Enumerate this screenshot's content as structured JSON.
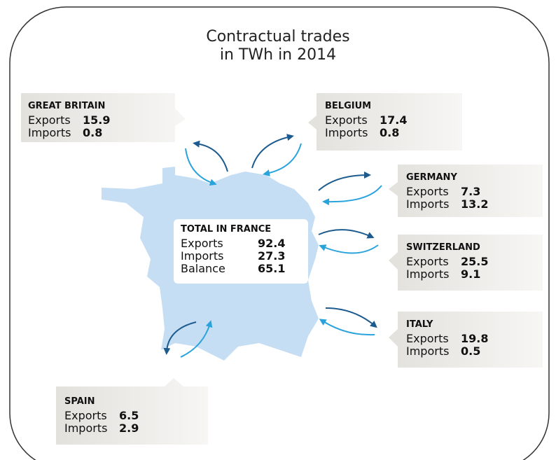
{
  "title": [
    "Contractual trades",
    "in TWh in 2014"
  ],
  "labels": {
    "exports": "Exports",
    "imports": "Imports",
    "balance": "Balance"
  },
  "total": {
    "name": "TOTAL IN FRANCE",
    "exports": 92.4,
    "imports": 27.3,
    "balance": 65.1
  },
  "countries": [
    {
      "name": "GREAT BRITAIN",
      "exports": 15.9,
      "imports": 0.8
    },
    {
      "name": "BELGIUM",
      "exports": 17.4,
      "imports": 0.8
    },
    {
      "name": "GERMANY",
      "exports": 7.3,
      "imports": 13.2
    },
    {
      "name": "SWITZERLAND",
      "exports": 25.5,
      "imports": 9.1
    },
    {
      "name": "ITALY",
      "exports": 19.8,
      "imports": 0.5
    },
    {
      "name": "SPAIN",
      "exports": 6.5,
      "imports": 2.9
    }
  ]
}
